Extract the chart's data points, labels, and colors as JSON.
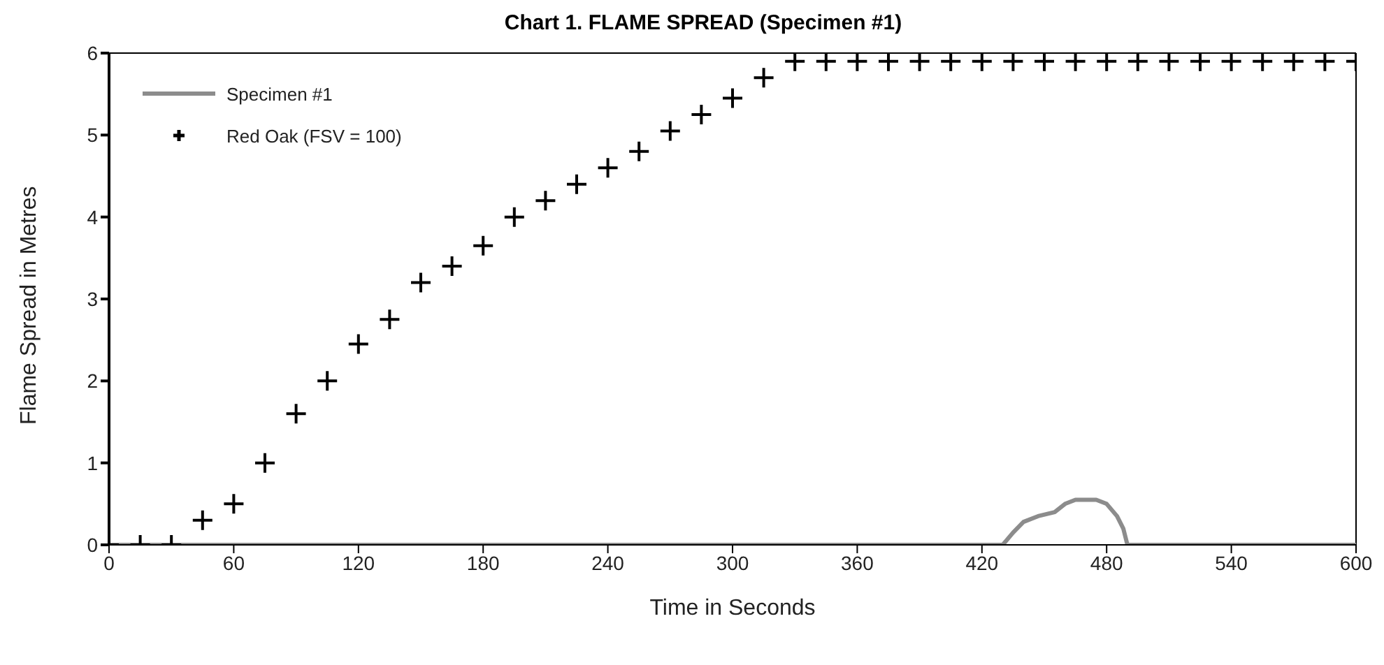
{
  "chart_data": {
    "type": "line",
    "title": "Chart 1. FLAME SPREAD (Specimen #1)",
    "xlabel": "Time in Seconds",
    "ylabel": "Flame Spread in Metres",
    "xlim": [
      0,
      600
    ],
    "xticks": [
      0,
      60,
      120,
      180,
      240,
      300,
      360,
      420,
      480,
      540,
      600
    ],
    "ylim": [
      0,
      6
    ],
    "yticks": [
      0,
      1,
      2,
      3,
      4,
      5,
      6
    ],
    "grid": false,
    "legend": "top left",
    "series": [
      {
        "name": "Specimen #1",
        "color": "#8c8c8c",
        "marker": "none",
        "line_style": "solid",
        "x": [
          0,
          430,
          435,
          440,
          447,
          455,
          460,
          465,
          475,
          480,
          485,
          488,
          490,
          600
        ],
        "values": [
          0,
          0,
          0.15,
          0.28,
          0.35,
          0.4,
          0.5,
          0.55,
          0.55,
          0.5,
          0.35,
          0.2,
          0,
          0
        ]
      },
      {
        "name": "Red Oak (FSV = 100)",
        "type": "scatter",
        "color": "#000000",
        "marker": "cross",
        "x": [
          0,
          15,
          30,
          45,
          60,
          75,
          90,
          105,
          120,
          135,
          150,
          165,
          180,
          195,
          210,
          225,
          240,
          255,
          270,
          285,
          300,
          315,
          330,
          345,
          360,
          375,
          390,
          405,
          420,
          435,
          450,
          465,
          480,
          495,
          510,
          525,
          540,
          555,
          570,
          585,
          600
        ],
        "values": [
          0,
          0,
          0,
          0.3,
          0.5,
          1.0,
          1.6,
          2.0,
          2.45,
          2.75,
          3.2,
          3.4,
          3.65,
          4.0,
          4.2,
          4.4,
          4.6,
          4.8,
          5.05,
          5.25,
          5.45,
          5.7,
          5.9,
          5.9,
          5.9,
          5.9,
          5.9,
          5.9,
          5.9,
          5.9,
          5.9,
          5.9,
          5.9,
          5.9,
          5.9,
          5.9,
          5.9,
          5.9,
          5.9,
          5.9,
          5.9
        ]
      }
    ]
  }
}
